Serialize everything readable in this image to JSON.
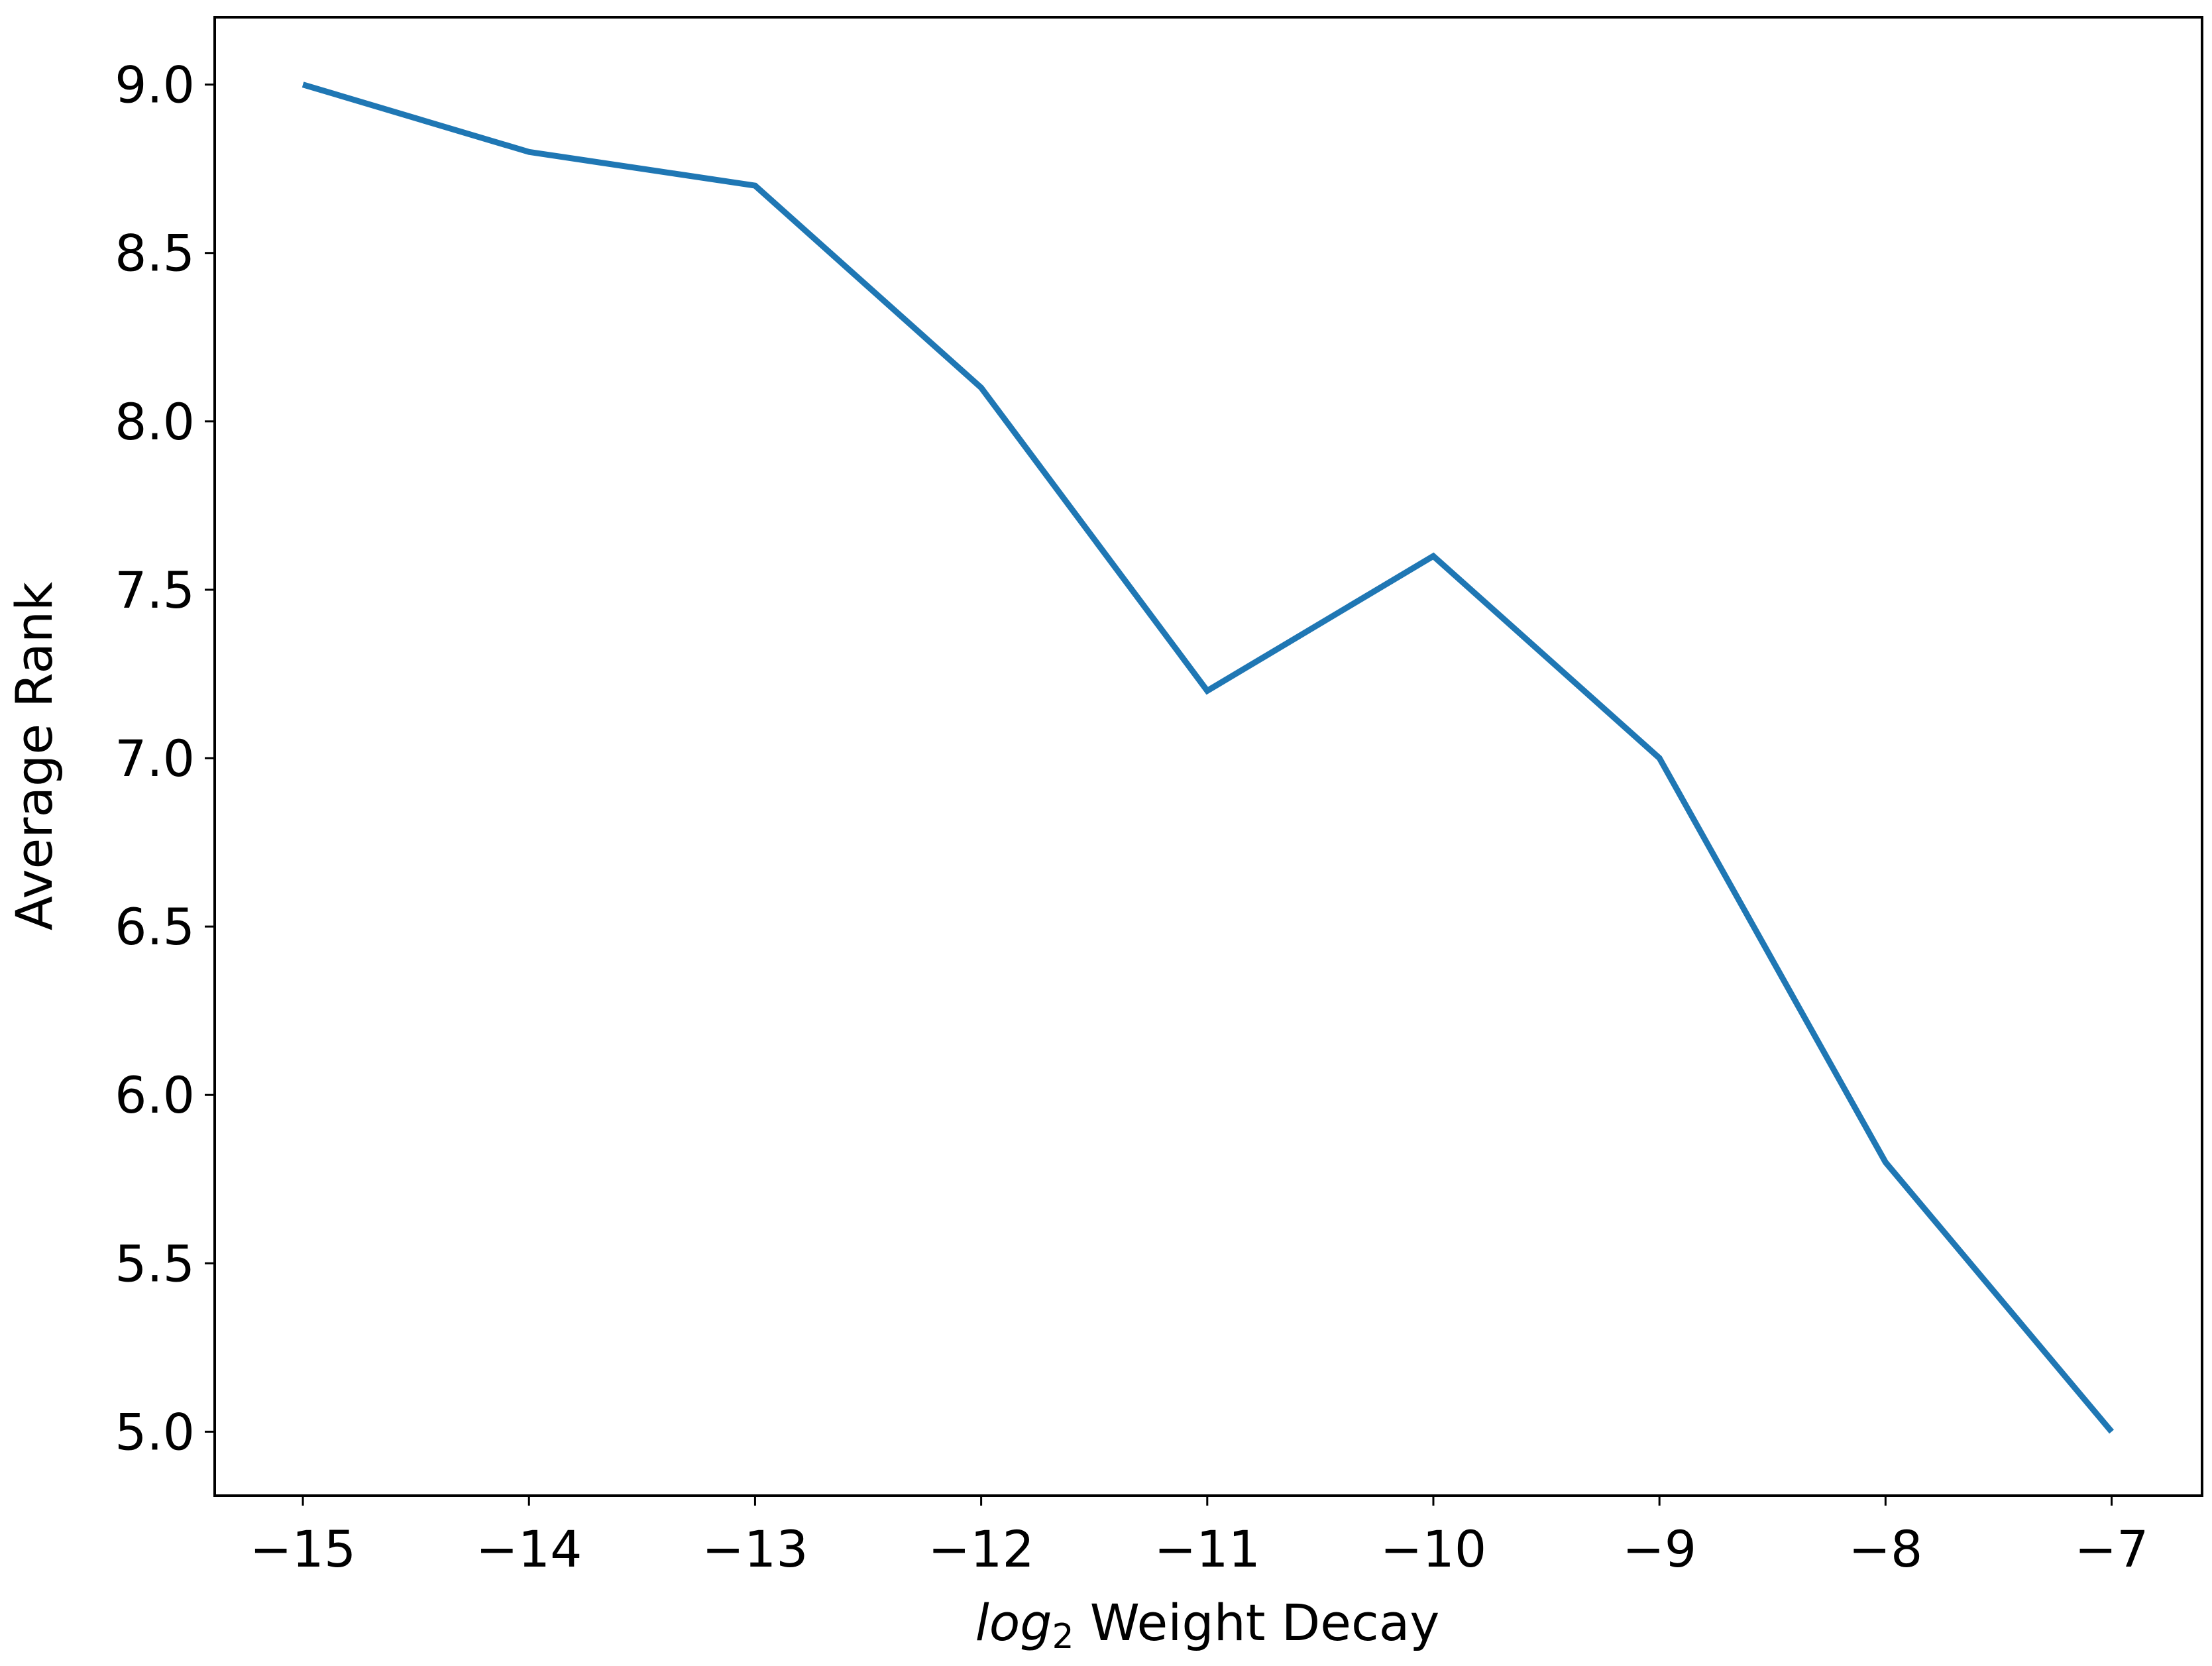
{
  "chart_data": {
    "type": "line",
    "xlabel": {
      "italic": "log",
      "sub": "2",
      "text": "Weight Decay"
    },
    "ylabel": "Average Rank",
    "x": [
      -15,
      -14,
      -13,
      -12,
      -11,
      -10,
      -9,
      -8,
      -7
    ],
    "series": [
      {
        "color": "#1f77b4",
        "values": [
          9.0,
          8.8,
          8.7,
          8.1,
          7.2,
          7.6,
          7.0,
          5.8,
          5.0
        ]
      }
    ],
    "xlim": [
      -15.39,
      -6.6
    ],
    "ylim": [
      4.81,
      9.2
    ],
    "xticks": [
      {
        "value": -15,
        "label": "−15"
      },
      {
        "value": -14,
        "label": "−14"
      },
      {
        "value": -13,
        "label": "−13"
      },
      {
        "value": -12,
        "label": "−12"
      },
      {
        "value": -11,
        "label": "−11"
      },
      {
        "value": -10,
        "label": "−10"
      },
      {
        "value": -9,
        "label": "−9"
      },
      {
        "value": -8,
        "label": "−8"
      },
      {
        "value": -7,
        "label": "−7"
      }
    ],
    "yticks": [
      {
        "value": 5,
        "label": "5.0"
      },
      {
        "value": 5.5,
        "label": "5.5"
      },
      {
        "value": 6,
        "label": "6.0"
      },
      {
        "value": 6.5,
        "label": "6.5"
      },
      {
        "value": 7,
        "label": "7.0"
      },
      {
        "value": 7.5,
        "label": "7.5"
      },
      {
        "value": 8,
        "label": "8.0"
      },
      {
        "value": 8.5,
        "label": "8.5"
      },
      {
        "value": 9,
        "label": "9.0"
      }
    ],
    "grid": false
  }
}
